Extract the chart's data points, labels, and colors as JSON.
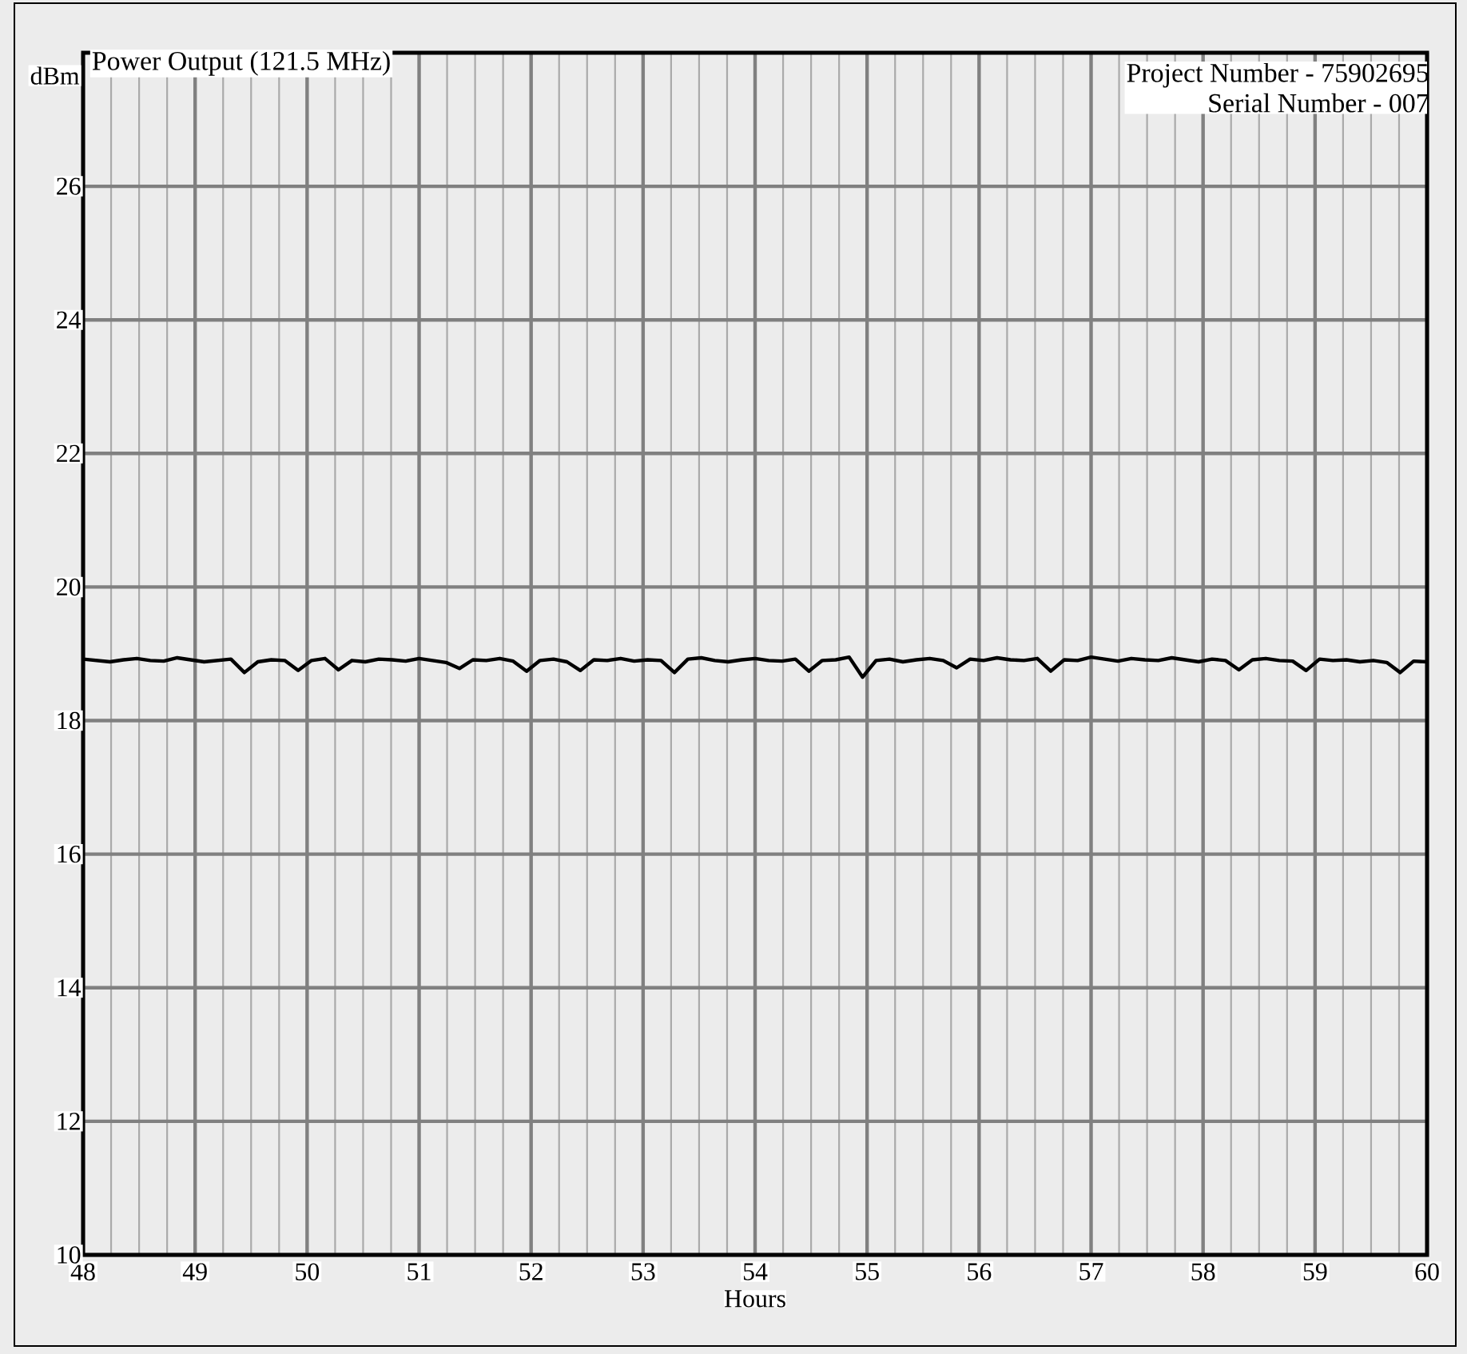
{
  "chart_data": {
    "type": "line",
    "title": "Power Output (121.5 MHz)",
    "xlabel": "Hours",
    "ylabel": "dBm",
    "annotations": [
      "Project Number - 75902695",
      "Serial Number - 007"
    ],
    "xlim": [
      48,
      60
    ],
    "ylim": [
      10,
      28
    ],
    "xticks": [
      48,
      49,
      50,
      51,
      52,
      53,
      54,
      55,
      56,
      57,
      58,
      59,
      60
    ],
    "yticks": [
      10,
      12,
      14,
      16,
      18,
      20,
      22,
      24,
      26
    ],
    "grid": true,
    "series": [
      {
        "color": "#000000",
        "x": [
          48,
          48.12,
          48.24,
          48.36,
          48.48,
          48.6,
          48.72,
          48.84,
          48.96,
          49.08,
          49.2,
          49.32,
          49.44,
          49.56,
          49.68,
          49.8,
          49.92,
          50.04,
          50.16,
          50.28,
          50.4,
          50.52,
          50.64,
          50.76,
          50.88,
          51,
          51.12,
          51.24,
          51.36,
          51.48,
          51.6,
          51.72,
          51.84,
          51.96,
          52.08,
          52.2,
          52.32,
          52.44,
          52.56,
          52.68,
          52.8,
          52.92,
          53.04,
          53.16,
          53.28,
          53.4,
          53.52,
          53.64,
          53.76,
          53.88,
          54,
          54.12,
          54.24,
          54.36,
          54.48,
          54.6,
          54.72,
          54.84,
          54.96,
          55.08,
          55.2,
          55.32,
          55.44,
          55.56,
          55.68,
          55.8,
          55.92,
          56.04,
          56.16,
          56.28,
          56.4,
          56.52,
          56.64,
          56.76,
          56.88,
          57,
          57.12,
          57.24,
          57.36,
          57.48,
          57.6,
          57.72,
          57.84,
          57.96,
          58.08,
          58.2,
          58.32,
          58.44,
          58.56,
          58.68,
          58.8,
          58.92,
          59.04,
          59.16,
          59.28,
          59.4,
          59.52,
          59.64,
          59.76,
          59.88,
          60
        ],
        "values": [
          18.92,
          18.9,
          18.88,
          18.91,
          18.93,
          18.9,
          18.89,
          18.94,
          18.91,
          18.88,
          18.9,
          18.92,
          18.72,
          18.88,
          18.91,
          18.9,
          18.75,
          18.9,
          18.93,
          18.76,
          18.9,
          18.88,
          18.92,
          18.91,
          18.89,
          18.93,
          18.9,
          18.87,
          18.78,
          18.91,
          18.9,
          18.93,
          18.89,
          18.74,
          18.9,
          18.92,
          18.88,
          18.75,
          18.91,
          18.9,
          18.93,
          18.89,
          18.91,
          18.9,
          18.72,
          18.92,
          18.94,
          18.9,
          18.88,
          18.91,
          18.93,
          18.9,
          18.89,
          18.92,
          18.74,
          18.9,
          18.91,
          18.95,
          18.65,
          18.9,
          18.92,
          18.88,
          18.91,
          18.93,
          18.9,
          18.79,
          18.92,
          18.9,
          18.94,
          18.91,
          18.9,
          18.93,
          18.74,
          18.91,
          18.9,
          18.95,
          18.92,
          18.89,
          18.93,
          18.91,
          18.9,
          18.94,
          18.91,
          18.88,
          18.92,
          18.9,
          18.76,
          18.91,
          18.93,
          18.9,
          18.89,
          18.75,
          18.92,
          18.9,
          18.91,
          18.88,
          18.9,
          18.87,
          18.72,
          18.89,
          18.88
        ]
      }
    ]
  }
}
